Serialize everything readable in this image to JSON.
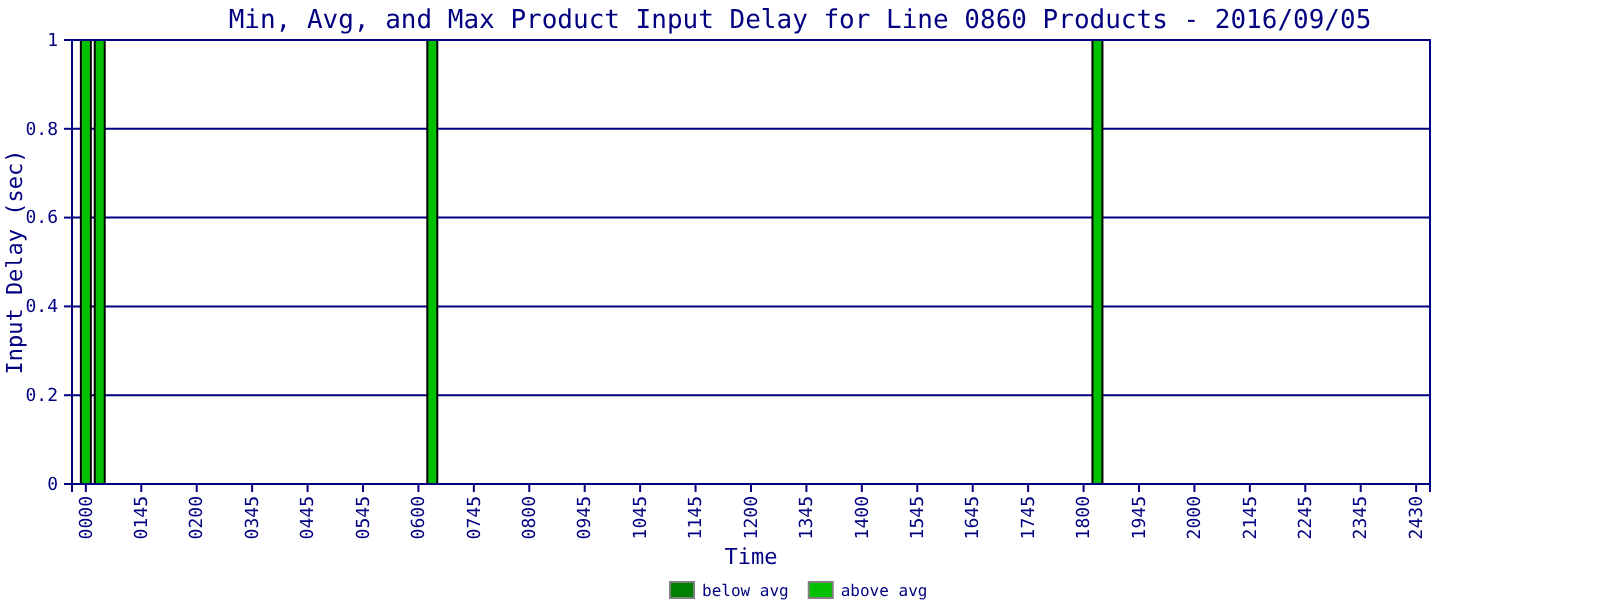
{
  "chart_data": {
    "type": "bar",
    "title": "Min, Avg, and Max Product Input Delay for Line 0860 Products - 2016/09/05",
    "xlabel": "Time",
    "ylabel": "Input Delay (sec)",
    "categories": [
      "0000",
      null,
      null,
      null,
      "0145",
      null,
      null,
      null,
      "0200",
      null,
      null,
      null,
      "0345",
      null,
      null,
      null,
      "0445",
      null,
      null,
      null,
      "0545",
      null,
      null,
      null,
      "0600",
      null,
      null,
      null,
      "0745",
      null,
      null,
      null,
      "0800",
      null,
      null,
      null,
      "0945",
      null,
      null,
      null,
      "1045",
      null,
      null,
      null,
      "1145",
      null,
      null,
      null,
      "1200",
      null,
      null,
      null,
      "1345",
      null,
      null,
      null,
      "1400",
      null,
      null,
      null,
      "1545",
      null,
      null,
      null,
      "1645",
      null,
      null,
      null,
      "1745",
      null,
      null,
      null,
      "1800",
      null,
      null,
      null,
      "1945",
      null,
      null,
      null,
      "2000",
      null,
      null,
      null,
      "2145",
      null,
      null,
      null,
      "2245",
      null,
      null,
      null,
      "2345",
      null,
      null,
      null,
      "2430"
    ],
    "series": [
      {
        "name": "below avg",
        "color": "#008000",
        "values": [
          0,
          0,
          0,
          0,
          0,
          0,
          0,
          0,
          0,
          0,
          0,
          0,
          0,
          0,
          0,
          0,
          0,
          0,
          0,
          0,
          0,
          0,
          0,
          0,
          0,
          0,
          0,
          0,
          0,
          0,
          0,
          0,
          0,
          0,
          0,
          0,
          0,
          0,
          0,
          0,
          0,
          0,
          0,
          0,
          0,
          0,
          0,
          0,
          0,
          0,
          0,
          0,
          0,
          0,
          0,
          0,
          0,
          0,
          0,
          0,
          0,
          0,
          0,
          0,
          0,
          0,
          0,
          0,
          0,
          0,
          0,
          0,
          0,
          0,
          0,
          0,
          0,
          0,
          0,
          0,
          0,
          0,
          0,
          0,
          0,
          0,
          0,
          0,
          0,
          0,
          0,
          0,
          0,
          0,
          0,
          0,
          0
        ]
      },
      {
        "name": "above avg",
        "color": "#00c000",
        "values": [
          1,
          1,
          0,
          0,
          0,
          0,
          0,
          0,
          0,
          0,
          0,
          0,
          0,
          0,
          0,
          0,
          0,
          0,
          0,
          0,
          0,
          0,
          0,
          0,
          0,
          1,
          0,
          0,
          0,
          0,
          0,
          0,
          0,
          0,
          0,
          0,
          0,
          0,
          0,
          0,
          0,
          0,
          0,
          0,
          0,
          0,
          0,
          0,
          0,
          0,
          0,
          0,
          0,
          0,
          0,
          0,
          0,
          0,
          0,
          0,
          0,
          0,
          0,
          0,
          0,
          0,
          0,
          0,
          0,
          0,
          0,
          0,
          0,
          1,
          0,
          0,
          0,
          0,
          0,
          0,
          0,
          0,
          0,
          0,
          0,
          0,
          0,
          0,
          0,
          0,
          0,
          0,
          0,
          0,
          0,
          0,
          0
        ]
      }
    ],
    "ylim": [
      0,
      1
    ],
    "yticks": [
      0,
      0.2,
      0.4,
      0.6,
      0.8,
      1
    ],
    "grid": "y",
    "legend": "bottom"
  }
}
